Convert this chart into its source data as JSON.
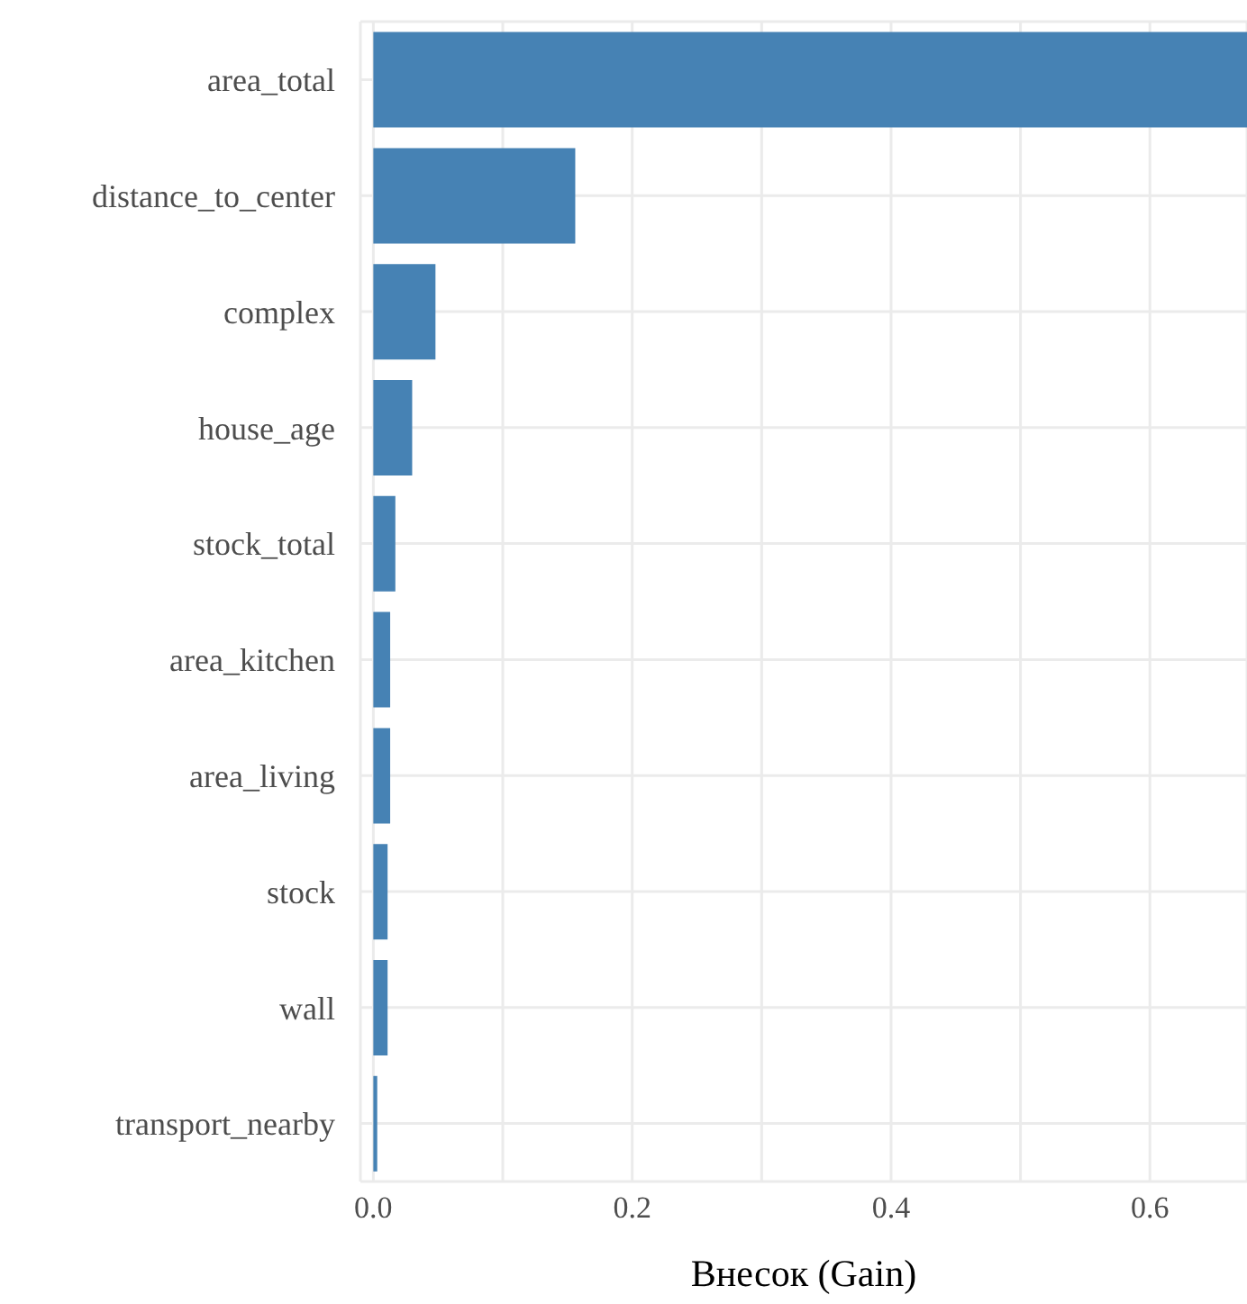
{
  "chart_data": {
    "type": "bar",
    "orientation": "horizontal",
    "xlabel": "Внесок (Gain)",
    "categories": [
      "area_total",
      "distance_to_center",
      "complex",
      "house_age",
      "stock_total",
      "area_kitchen",
      "area_living",
      "stock",
      "wall",
      "transport_nearby"
    ],
    "values": [
      0.675,
      0.156,
      0.048,
      0.03,
      0.017,
      0.013,
      0.013,
      0.011,
      0.011,
      0.003
    ],
    "color": "#4682b4",
    "xlim": [
      -0.01,
      0.675
    ],
    "xticks": [
      {
        "value": 0,
        "label": "0.0"
      },
      {
        "value": 0.1,
        "label": null
      },
      {
        "value": 0.2,
        "label": "0.2"
      },
      {
        "value": 0.3,
        "label": null
      },
      {
        "value": 0.4,
        "label": "0.4"
      },
      {
        "value": 0.5,
        "label": null
      },
      {
        "value": 0.6,
        "label": "0.6"
      }
    ],
    "grid": true
  }
}
